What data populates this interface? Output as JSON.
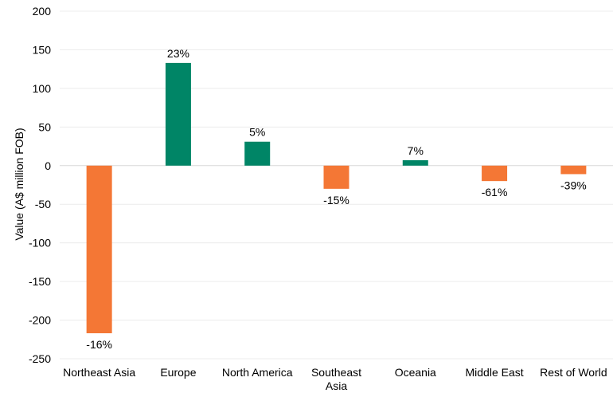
{
  "chart_data": {
    "type": "bar",
    "categories": [
      [
        "Northeast Asia"
      ],
      [
        "Europe"
      ],
      [
        "North America"
      ],
      [
        "Southeast",
        "Asia"
      ],
      [
        "Oceania"
      ],
      [
        "Middle East"
      ],
      [
        "Rest of World"
      ]
    ],
    "values": [
      -217,
      133,
      31,
      -30,
      7,
      -20,
      -11
    ],
    "labels": [
      "-16%",
      "23%",
      "5%",
      "-15%",
      "7%",
      "-61%",
      "-39%"
    ],
    "ylabel": "Value (A$ million FOB)",
    "xlabel": "",
    "title": "",
    "ylim": [
      -250,
      200
    ],
    "yticks": [
      200,
      150,
      100,
      50,
      0,
      -50,
      -100,
      -150,
      -200,
      -250
    ],
    "grid": true,
    "colors": {
      "positive": "#008566",
      "negative": "#f47735"
    }
  }
}
